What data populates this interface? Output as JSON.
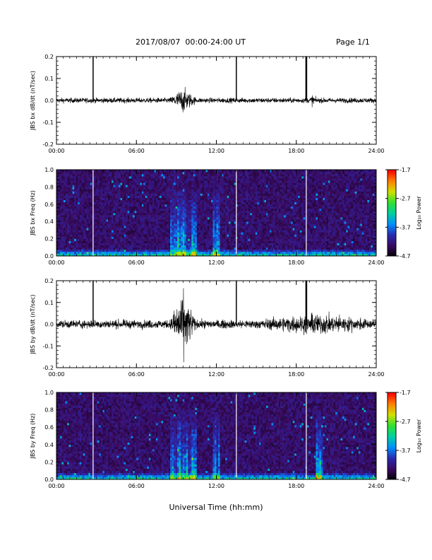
{
  "header": {
    "title": "2017/08/07  00:00-24:00 UT",
    "page": "Page 1/1"
  },
  "xaxis": {
    "label": "Universal Time (hh:mm)",
    "ticks": [
      "00:00",
      "06:00",
      "12:00",
      "18:00",
      "24:00"
    ]
  },
  "colorbar": {
    "label": "Log₁₀ Power",
    "ticks": [
      "-1.7",
      "-2.7",
      "-3.7",
      "-4.7"
    ],
    "range": [
      -4.7,
      -1.7
    ],
    "colormap": [
      "#000000",
      "#3a0a60",
      "#2a2ab0",
      "#0090ff",
      "#00d0a0",
      "#30e030",
      "#d0e000",
      "#ff8000",
      "#ff0000"
    ]
  },
  "chart_data": [
    {
      "type": "line",
      "ylabel": "JBS bx dB/dt (nT/sec)",
      "ylim": [
        -0.2,
        0.2
      ],
      "yticks": [
        "0.2",
        "0.1",
        "0.0",
        "-0.1",
        "-0.2"
      ],
      "xlim_hours": [
        0,
        24
      ],
      "baseline_amplitude": 0.012,
      "spikes": [
        {
          "time": "02:45",
          "value": 0.2
        },
        {
          "time": "13:30",
          "value": 0.2
        },
        {
          "time": "18:45",
          "value": 0.2
        }
      ],
      "active_intervals": [
        {
          "start": "08:30",
          "end": "10:30",
          "peak_value": 0.06
        },
        {
          "start": "19:00",
          "end": "19:30",
          "peak_value": 0.03
        }
      ]
    },
    {
      "type": "heatmap",
      "ylabel": "JBS bx Freq (Hz)",
      "ylim": [
        0.0,
        1.0
      ],
      "yticks": [
        "1.0",
        "0.8",
        "0.6",
        "0.4",
        "0.2",
        "0.0"
      ],
      "xlim_hours": [
        0,
        24
      ],
      "value_range": [
        -4.7,
        -1.7
      ],
      "gaps": [
        "02:45",
        "13:30",
        "18:45"
      ],
      "enhanced_intervals": [
        {
          "start": "08:30",
          "end": "10:30"
        },
        {
          "start": "11:45",
          "end": "12:15"
        }
      ]
    },
    {
      "type": "line",
      "ylabel": "JBS by dB/dt (nT/sec)",
      "ylim": [
        -0.2,
        0.2
      ],
      "yticks": [
        "0.2",
        "0.1",
        "0.0",
        "-0.1",
        "-0.2"
      ],
      "xlim_hours": [
        0,
        24
      ],
      "baseline_amplitude": 0.02,
      "spikes": [
        {
          "time": "02:45",
          "value": 0.2
        },
        {
          "time": "13:30",
          "value": 0.2
        },
        {
          "time": "18:45",
          "value": 0.2
        }
      ],
      "active_intervals": [
        {
          "start": "08:30",
          "end": "10:30",
          "peak_value": 0.15
        },
        {
          "start": "15:00",
          "end": "24:00",
          "peak_value": 0.05
        }
      ]
    },
    {
      "type": "heatmap",
      "ylabel": "JBS by Freq (Hz)",
      "ylim": [
        0.0,
        1.0
      ],
      "yticks": [
        "1.0",
        "0.8",
        "0.6",
        "0.4",
        "0.2",
        "0.0"
      ],
      "xlim_hours": [
        0,
        24
      ],
      "value_range": [
        -4.7,
        -1.7
      ],
      "gaps": [
        "02:45",
        "13:30",
        "18:45"
      ],
      "enhanced_intervals": [
        {
          "start": "08:30",
          "end": "10:30"
        },
        {
          "start": "11:45",
          "end": "12:15"
        },
        {
          "start": "19:30",
          "end": "20:00"
        }
      ]
    }
  ]
}
